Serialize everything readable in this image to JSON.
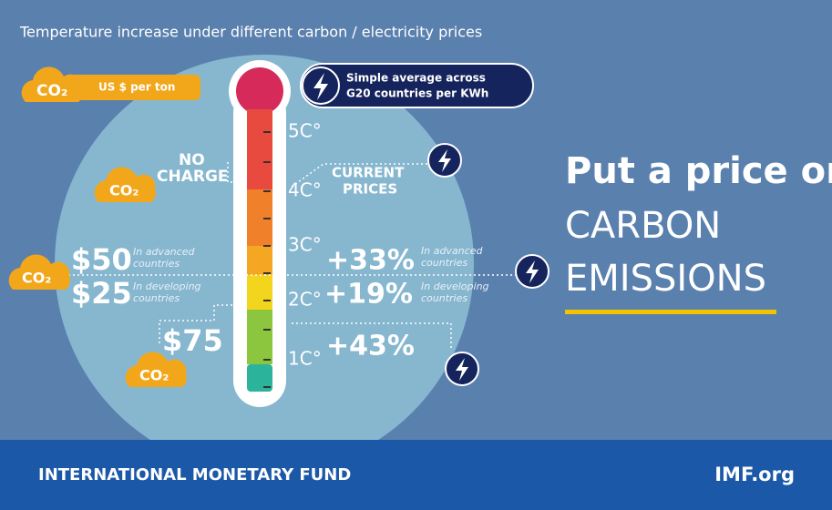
{
  "title": "Temperature increase under different carbon / electricity prices",
  "legend": {
    "carbon": {
      "symbol": "CO₂",
      "label": "US $ per ton"
    },
    "electricity": {
      "lines": [
        "Simple average across",
        "G20 countries per KWh"
      ]
    }
  },
  "thermometer": {
    "ticks": [
      "5C°",
      "4C°",
      "3C°",
      "2C°",
      "1C°"
    ]
  },
  "carbon": [
    {
      "symbol": "CO₂",
      "lines": [
        "NO",
        "CHARGE"
      ]
    },
    {
      "symbol": "CO₂",
      "rows": [
        {
          "price": "$50",
          "note": [
            "In advanced",
            "countries"
          ]
        },
        {
          "price": "$25",
          "note": [
            "In developing",
            "countries"
          ]
        }
      ]
    },
    {
      "symbol": "CO₂",
      "label": "$75"
    }
  ],
  "electricity": [
    {
      "lines": [
        "CURRENT",
        "PRICES"
      ]
    },
    {
      "rows": [
        {
          "change": "+33%",
          "note": [
            "In advanced",
            "countries"
          ]
        },
        {
          "change": "+19%",
          "note": [
            "In developing",
            "countries"
          ]
        }
      ]
    },
    {
      "label": "+43%"
    }
  ],
  "headline": [
    "Put a price on",
    "CARBON",
    "EMISSIONS"
  ],
  "footer": {
    "org": "INTERNATIONAL MONETARY FUND",
    "site": "IMF.org"
  }
}
